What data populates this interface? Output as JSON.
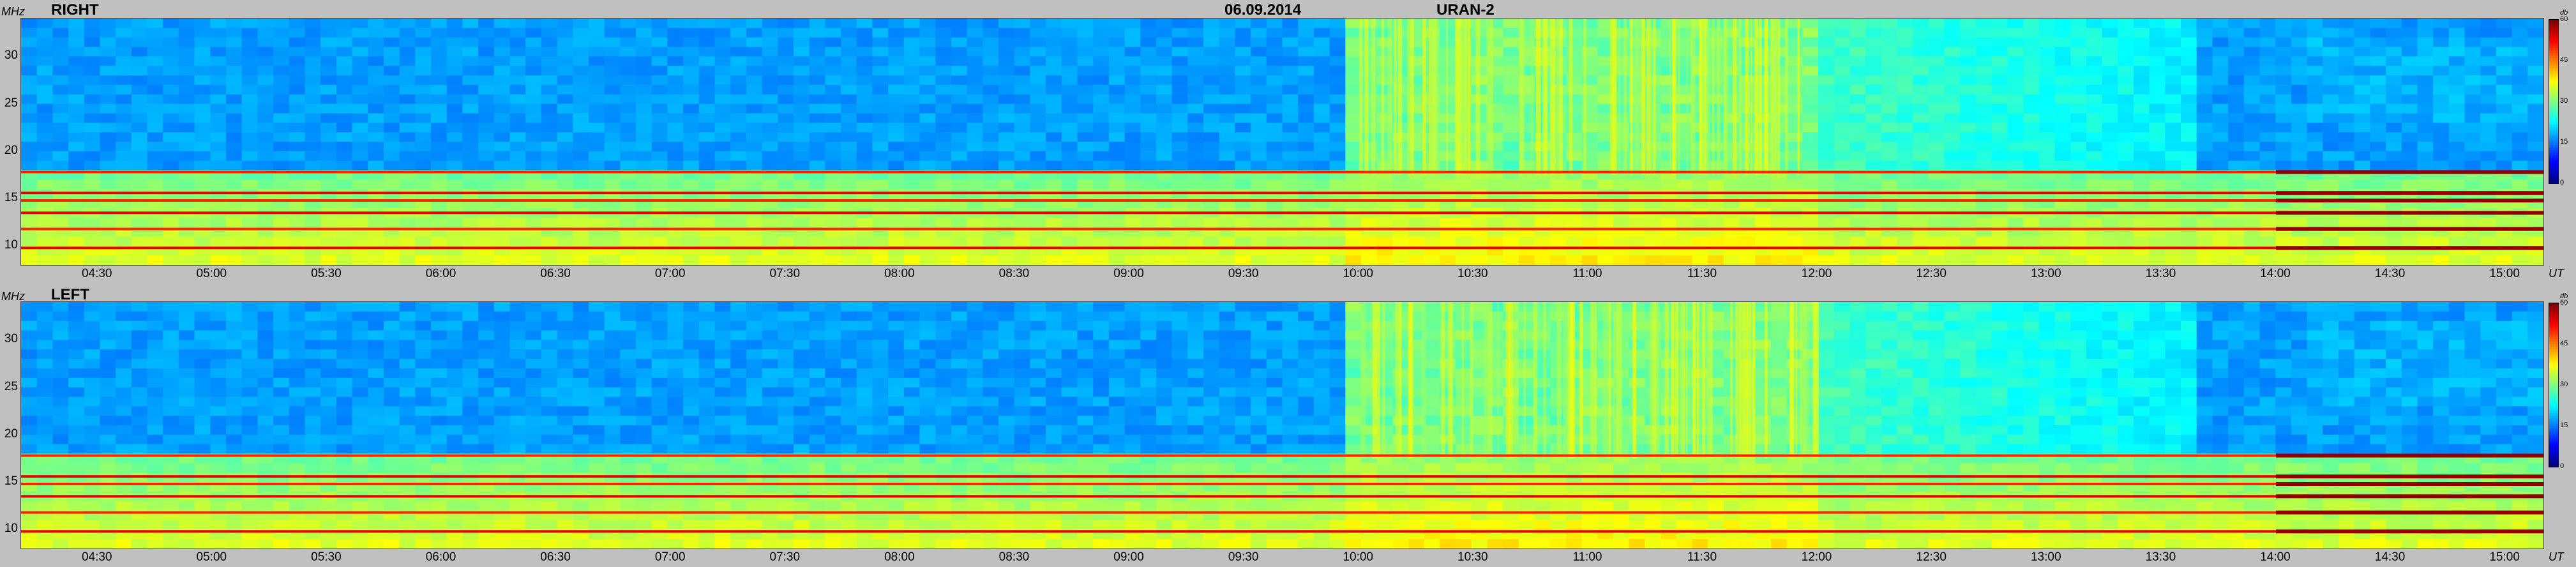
{
  "header": {
    "date": "06.09.2014",
    "instrument": "URAN-2"
  },
  "colors": {
    "colormap": "jet",
    "background": "#c0c0c0"
  },
  "chart_data": [
    {
      "type": "heatmap",
      "title": "RIGHT",
      "ylabel": "MHz",
      "xlabel": "UT",
      "ylim": [
        8,
        34
      ],
      "y_ticks": [
        10,
        15,
        20,
        25,
        30
      ],
      "x_range": [
        "04:10",
        "15:10"
      ],
      "x_ticks": [
        "04:30",
        "05:00",
        "05:30",
        "06:00",
        "06:30",
        "07:00",
        "07:30",
        "08:00",
        "08:30",
        "09:00",
        "09:30",
        "10:00",
        "10:30",
        "11:00",
        "11:30",
        "12:00",
        "12:30",
        "13:00",
        "13:30",
        "14:00",
        "14:30",
        "15:00"
      ],
      "colorbar": {
        "label": "db",
        "range": [
          0,
          60
        ],
        "ticks": [
          0,
          15,
          30,
          45,
          60
        ]
      },
      "description_values": {
        "persistent_bands_MHz": [
          17.8,
          15.6,
          14.8,
          13.5,
          11.8,
          9.8
        ],
        "enhanced_emission_window": [
          "10:00",
          "12:00"
        ]
      }
    },
    {
      "type": "heatmap",
      "title": "LEFT",
      "ylabel": "MHz",
      "xlabel": "UT",
      "ylim": [
        8,
        34
      ],
      "y_ticks": [
        10,
        15,
        20,
        25,
        30
      ],
      "x_range": [
        "04:10",
        "15:10"
      ],
      "x_ticks": [
        "04:30",
        "05:00",
        "05:30",
        "06:00",
        "06:30",
        "07:00",
        "07:30",
        "08:00",
        "08:30",
        "09:00",
        "09:30",
        "10:00",
        "10:30",
        "11:00",
        "11:30",
        "12:00",
        "12:30",
        "13:00",
        "13:30",
        "14:00",
        "14:30",
        "15:00"
      ],
      "colorbar": {
        "label": "db",
        "range": [
          0,
          60
        ],
        "ticks": [
          0,
          15,
          30,
          45,
          60
        ]
      },
      "description_values": {
        "persistent_bands_MHz": [
          17.8,
          15.6,
          14.8,
          13.5,
          11.8,
          9.8
        ],
        "enhanced_emission_window": [
          "10:00",
          "12:00"
        ]
      }
    }
  ]
}
